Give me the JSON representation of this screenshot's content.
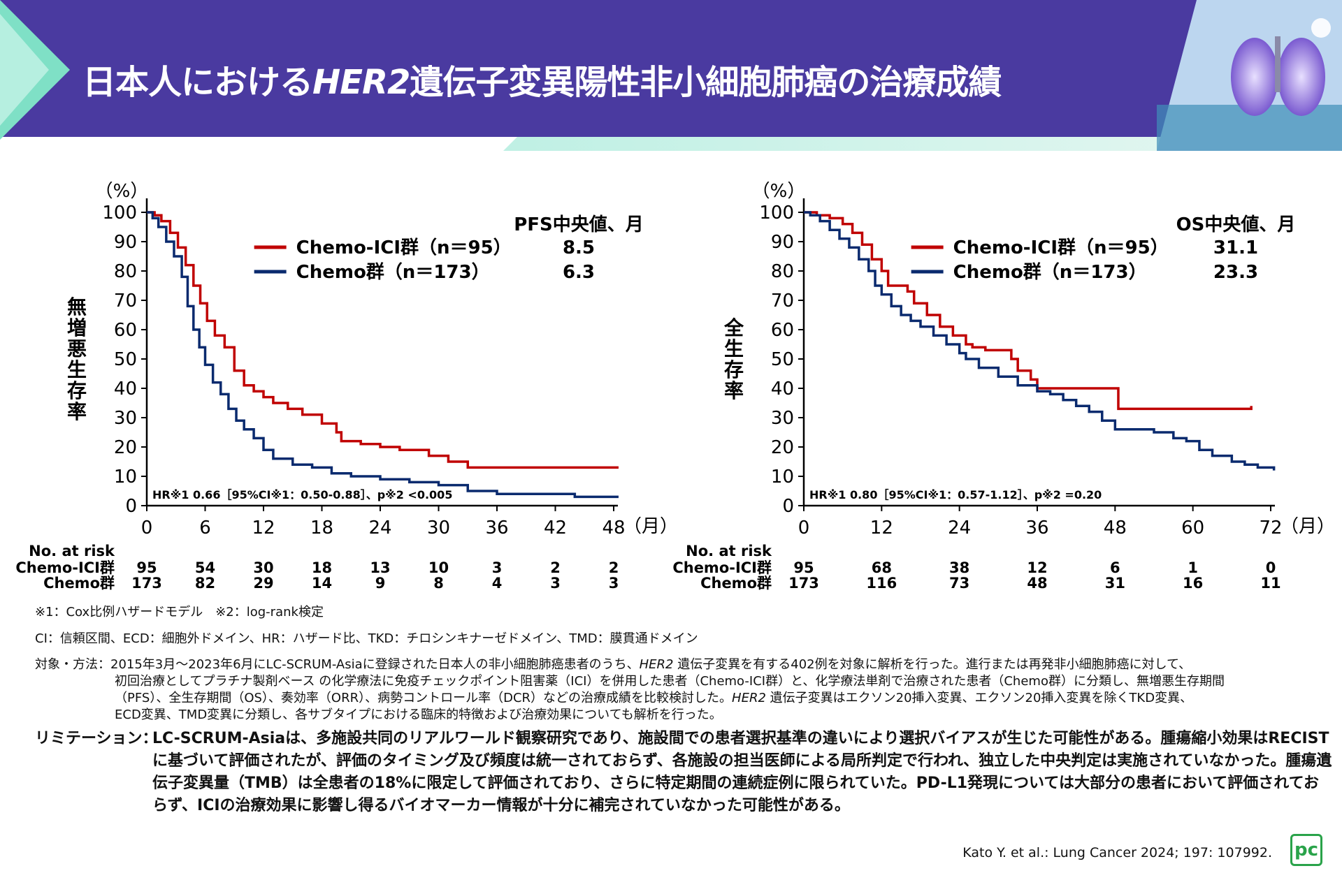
{
  "header": {
    "title_pre": "日本人における",
    "title_italic": "HER2",
    "title_post": "遺伝子変異陽性非小細胞肺癌の治療成績"
  },
  "colors": {
    "chemo_ici": "#c00000",
    "chemo": "#0a2a6e",
    "banner": "#4a3aa0"
  },
  "icons": {
    "banner_image": "lung-illustration-icon",
    "logo": "pc-logo-icon"
  },
  "chart_data": [
    {
      "type": "line",
      "ylabel": "無増悪生存率",
      "yunit": "（%）",
      "xunit": "（月）",
      "xlim": [
        0,
        48
      ],
      "ylim": [
        0,
        100
      ],
      "xticks": [
        0,
        6,
        12,
        18,
        24,
        30,
        36,
        42,
        48
      ],
      "yticks": [
        0,
        10,
        20,
        30,
        40,
        50,
        60,
        70,
        80,
        90,
        100
      ],
      "median_header": "PFS中央値、月",
      "series": [
        {
          "name": "Chemo-ICI群（n＝95）",
          "median": "8.5",
          "x": [
            0,
            0.8,
            1.5,
            2.4,
            3.2,
            4.0,
            4.8,
            5.5,
            6.2,
            7.0,
            8.0,
            9.0,
            10.0,
            11.0,
            12.0,
            13.0,
            14.5,
            16.0,
            18.0,
            19.5,
            20.0,
            22.0,
            24.0,
            26.0,
            27.0,
            29.0,
            31.0,
            33.0,
            36.0,
            40.0,
            44.0,
            49.0
          ],
          "y": [
            100,
            99,
            97,
            93,
            88,
            82,
            75,
            69,
            63,
            58,
            54,
            46,
            41,
            39,
            37,
            35,
            33,
            31,
            28,
            25,
            22,
            21,
            20,
            19,
            19,
            17,
            15,
            13,
            13,
            13,
            13,
            13
          ]
        },
        {
          "name": "Chemo群（n＝173）",
          "median": "6.3",
          "x": [
            0,
            0.6,
            1.2,
            2.0,
            2.8,
            3.6,
            4.2,
            4.8,
            5.4,
            6.0,
            6.8,
            7.6,
            8.4,
            9.2,
            10.0,
            11.0,
            12.0,
            13.0,
            15.0,
            17.0,
            19.0,
            21.0,
            24.0,
            27.0,
            30.0,
            33.0,
            36.0,
            40.0,
            44.0,
            49.0
          ],
          "y": [
            100,
            98,
            95,
            90,
            85,
            78,
            68,
            60,
            54,
            48,
            42,
            38,
            33,
            29,
            26,
            23,
            19,
            16,
            14,
            13,
            11,
            10,
            9,
            8,
            7,
            5,
            4,
            4,
            3,
            3
          ]
        }
      ],
      "stat_text": "HR※1 0.66［95%CI※1：0.50-0.88］、p※2 <0.005",
      "risk_title": "No. at risk",
      "risk_rows": [
        {
          "label": "Chemo-ICI群",
          "values": [
            "95",
            "54",
            "30",
            "18",
            "13",
            "10",
            "3",
            "2",
            "2"
          ]
        },
        {
          "label": "Chemo群",
          "values": [
            "173",
            "82",
            "29",
            "14",
            "9",
            "8",
            "4",
            "3",
            "3"
          ]
        }
      ]
    },
    {
      "type": "line",
      "ylabel": "全生存率",
      "yunit": "（%）",
      "xunit": "（月）",
      "xlim": [
        0,
        72
      ],
      "ylim": [
        0,
        100
      ],
      "xticks": [
        0,
        12,
        24,
        36,
        48,
        60,
        72
      ],
      "yticks": [
        0,
        10,
        20,
        30,
        40,
        50,
        60,
        70,
        80,
        90,
        100
      ],
      "median_header": "OS中央値、月",
      "series": [
        {
          "name": "Chemo-ICI群（n＝95）",
          "median": "31.1",
          "x": [
            0,
            1.0,
            2.0,
            4.0,
            6.0,
            7.5,
            9.0,
            10.5,
            12.0,
            13.0,
            15.0,
            16.0,
            17.0,
            19.0,
            21.0,
            23.0,
            25.0,
            26.0,
            28.0,
            31.0,
            32.0,
            33.0,
            35.0,
            36.0,
            48.5,
            58.0,
            62.0,
            66.0,
            69.0
          ],
          "y": [
            100,
            100,
            99,
            98,
            96,
            93,
            89,
            84,
            80,
            75,
            75,
            73,
            69,
            65,
            61,
            58,
            55,
            54,
            53,
            53,
            50,
            46,
            43,
            40,
            33,
            33,
            33,
            33,
            34
          ]
        },
        {
          "name": "Chemo群（n＝173）",
          "median": "23.3",
          "x": [
            0,
            1.0,
            2.5,
            4.0,
            5.5,
            7.0,
            8.5,
            10.0,
            11.0,
            12.0,
            13.5,
            15.0,
            16.5,
            18.0,
            20.0,
            22.0,
            24.0,
            25.0,
            27.0,
            30.0,
            33.0,
            36.0,
            38.0,
            40.0,
            42.0,
            44.0,
            46.0,
            48.0,
            52.0,
            54.0,
            57.0,
            59.0,
            61.0,
            63.0,
            66.0,
            68.0,
            70.0,
            74.0
          ],
          "y": [
            100,
            99,
            97,
            94,
            91,
            88,
            84,
            80,
            75,
            72,
            68,
            65,
            63,
            61,
            58,
            55,
            52,
            50,
            47,
            44,
            41,
            39,
            38,
            36,
            34,
            32,
            29,
            26,
            26,
            25,
            23,
            22,
            19,
            17,
            15,
            14,
            13,
            12
          ]
        }
      ],
      "stat_text": "HR※1 0.80［95%CI※1：0.57-1.12］、p※2 =0.20",
      "risk_title": "No. at risk",
      "risk_rows": [
        {
          "label": "Chemo-ICI群",
          "values": [
            "95",
            "68",
            "38",
            "12",
            "6",
            "1",
            "0"
          ]
        },
        {
          "label": "Chemo群",
          "values": [
            "173",
            "116",
            "73",
            "48",
            "31",
            "16",
            "11"
          ]
        }
      ]
    }
  ],
  "footnotes": {
    "note1": "※1：Cox比例ハザードモデル　※2：log-rank検定",
    "note2": "CI：信頼区間、ECD：細胞外ドメイン、HR：ハザード比、TKD：チロシンキナーゼドメイン、TMD：膜貫通ドメイン",
    "methods_label": "対象・方法：",
    "methods_1a": "2015年3月～2023年6月にLC-SCRUM-Asiaに登録された日本人の非小細胞肺癌患者のうち、",
    "methods_1b": "HER2",
    "methods_1c": " 遺伝子変異を有する402例を対象に解析を行った。進行または再発非小細胞肺癌に対して、",
    "methods_2": "初回治療としてプラチナ製剤ベース の化学療法に免疫チェックポイント阻害薬（ICI）を併用した患者（Chemo-ICI群）と、化学療法単剤で治療された患者（Chemo群）に分類し、無増悪生存期間",
    "methods_3a": "（PFS）、全生存期間（OS）、奏効率（ORR）、病勢コントロール率（DCR）などの治療成績を比較検討した。",
    "methods_3b": "HER2",
    "methods_3c": " 遺伝子変異はエクソン20挿入変異、エクソン20挿入変異を除くTKD変異、",
    "methods_4": "ECD変異、TMD変異に分類し、各サブタイプにおける臨床的特徴および治療効果についても解析を行った。",
    "limit_label": "リミテーション：",
    "limit_body": "LC-SCRUM-Asiaは、多施設共同のリアルワールド観察研究であり、施設間での患者選択基準の違いにより選択バイアスが生じた可能性がある。腫瘍縮小効果はRECISTに基づいて評価されたが、評価のタイミング及び頻度は統一されておらず、各施設の担当医師による局所判定で行われ、独立した中央判定は実施されていなかった。腫瘍遺伝子変異量（TMB）は全患者の18%に限定して評価されており、さらに特定期間の連続症例に限られていた。PD-L1発現については大部分の患者において評価されておらず、ICIの治療効果に影響し得るバイオマーカー情報が十分に補完されていなかった可能性がある。",
    "citation": "Kato Y. et al.: Lung Cancer 2024; 197: 107992.",
    "logo_text": "pc"
  }
}
